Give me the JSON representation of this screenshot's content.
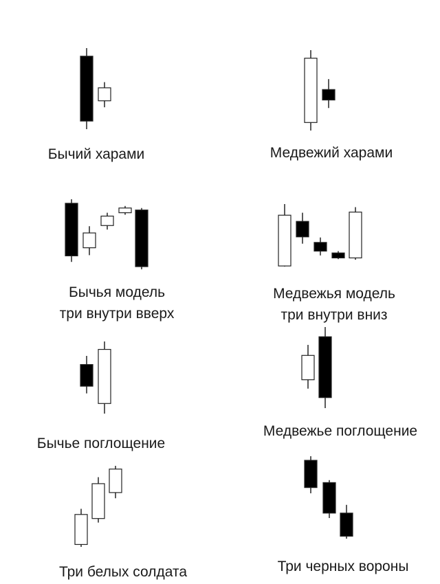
{
  "colors": {
    "bull_fill": "#ffffff",
    "bear_fill": "#000000",
    "stroke": "#222222",
    "text": "#1a1a1a"
  },
  "patterns": [
    {
      "name": "bullish-harami",
      "lines": [
        "Бычий харами"
      ],
      "candles": [
        {
          "dir": "bear",
          "open": 90,
          "close": 10,
          "high": 100,
          "low": 0
        },
        {
          "dir": "bull",
          "open": 35,
          "close": 51,
          "high": 58,
          "low": 27
        }
      ]
    },
    {
      "name": "bearish-harami",
      "lines": [
        "Медвежий харами"
      ],
      "candles": [
        {
          "dir": "bull",
          "open": 10,
          "close": 90,
          "high": 100,
          "low": 0
        },
        {
          "dir": "bear",
          "open": 51,
          "close": 38,
          "high": 64,
          "low": 28
        }
      ]
    },
    {
      "name": "bullish-three-inside-up",
      "lines": [
        "Бычья модель",
        "три внутри вверх"
      ],
      "candles": [
        {
          "dir": "bear",
          "open": 94,
          "close": 16,
          "high": 100,
          "low": 7
        },
        {
          "dir": "bull",
          "open": 28,
          "close": 50,
          "high": 60,
          "low": 17
        },
        {
          "dir": "bull",
          "open": 61,
          "close": 75,
          "high": 80,
          "low": 55
        },
        {
          "dir": "bull",
          "open": 80,
          "close": 87,
          "high": 90,
          "low": 77
        },
        {
          "dir": "bear",
          "open": 84,
          "close": 0,
          "high": 87,
          "low": -4
        }
      ]
    },
    {
      "name": "bearish-three-inside-down",
      "lines": [
        "Медвежья модель",
        "три внутри вниз"
      ],
      "candles": [
        {
          "dir": "bull",
          "open": 0,
          "close": 82,
          "high": 100,
          "low": -1
        },
        {
          "dir": "bear",
          "open": 72,
          "close": 47,
          "high": 86,
          "low": 36
        },
        {
          "dir": "bear",
          "open": 38,
          "close": 24,
          "high": 46,
          "low": 17
        },
        {
          "dir": "bear",
          "open": 21,
          "close": 13,
          "high": 24,
          "low": 11
        },
        {
          "dir": "bull",
          "open": 13,
          "close": 87,
          "high": 95,
          "low": 10
        }
      ]
    },
    {
      "name": "bullish-engulfing",
      "lines": [
        "Бычье поглощение"
      ],
      "candles": [
        {
          "dir": "bear",
          "open": 68,
          "close": 38,
          "high": 80,
          "low": 28
        },
        {
          "dir": "bull",
          "open": 14,
          "close": 89,
          "high": 100,
          "low": 0
        }
      ]
    },
    {
      "name": "bearish-engulfing",
      "lines": [
        "Медвежье поглощение"
      ],
      "candles": [
        {
          "dir": "bull",
          "open": 35,
          "close": 65,
          "high": 78,
          "low": 24
        },
        {
          "dir": "bear",
          "open": 88,
          "close": 13,
          "high": 100,
          "low": 0
        }
      ]
    },
    {
      "name": "three-white-soldiers",
      "lines": [
        "Три белых солдата"
      ],
      "candles": [
        {
          "dir": "bull",
          "open": 3,
          "close": 40,
          "high": 47,
          "low": 0
        },
        {
          "dir": "bull",
          "open": 35,
          "close": 78,
          "high": 86,
          "low": 30
        },
        {
          "dir": "bull",
          "open": 67,
          "close": 96,
          "high": 100,
          "low": 60
        }
      ]
    },
    {
      "name": "three-black-crows",
      "lines": [
        "Три черных вороны"
      ],
      "candles": [
        {
          "dir": "bear",
          "open": 95,
          "close": 62,
          "high": 100,
          "low": 55
        },
        {
          "dir": "bear",
          "open": 68,
          "close": 31,
          "high": 71,
          "low": 25
        },
        {
          "dir": "bear",
          "open": 31,
          "close": 3,
          "high": 41,
          "low": 0
        }
      ]
    }
  ]
}
